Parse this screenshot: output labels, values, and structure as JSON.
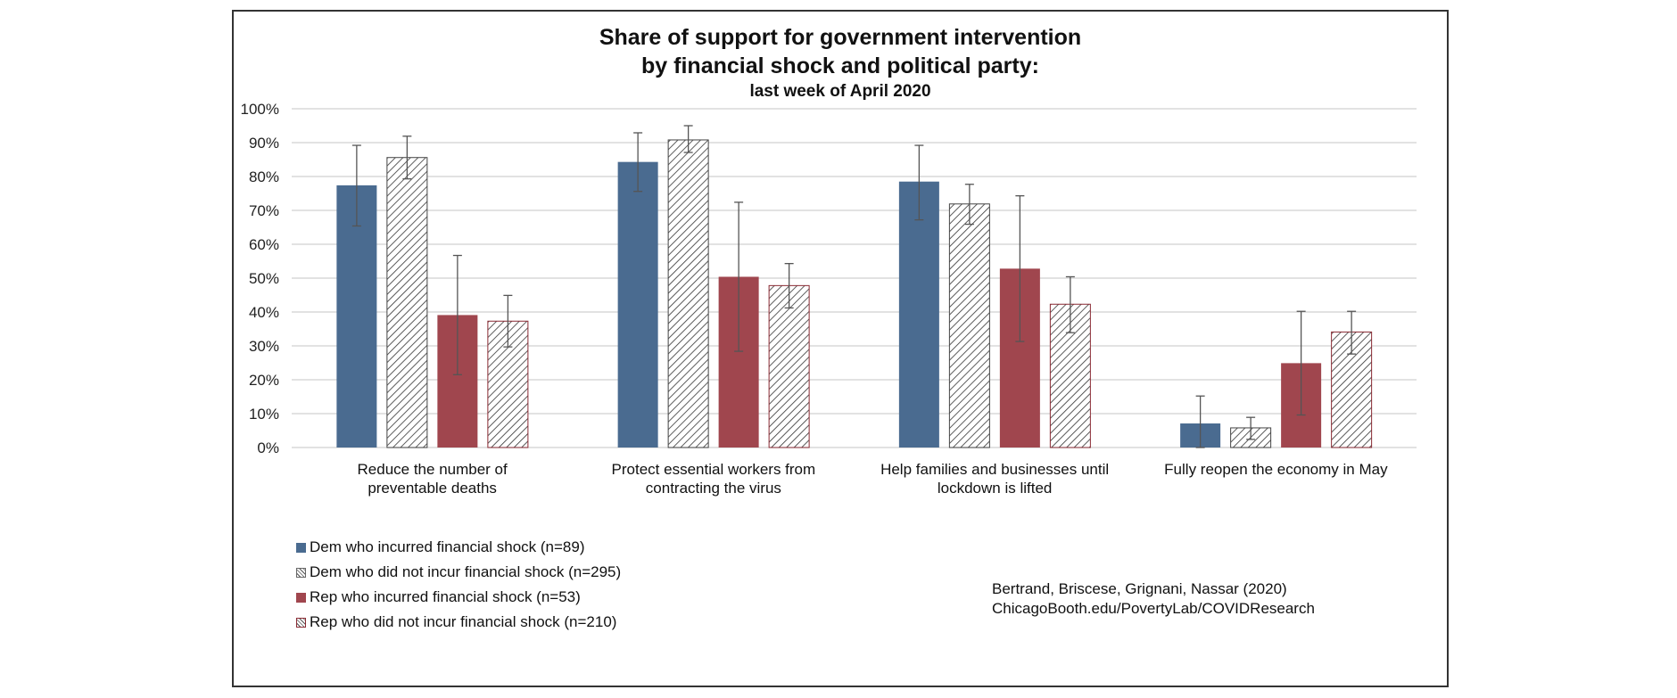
{
  "chart_data": {
    "type": "bar",
    "title": "Share of support for government intervention",
    "title_line2": "by financial shock and political party:",
    "subtitle": "last week of April 2020",
    "xlabel": "",
    "ylabel": "",
    "ylim": [
      0,
      100
    ],
    "yticks": [
      "0%",
      "10%",
      "20%",
      "30%",
      "40%",
      "50%",
      "60%",
      "70%",
      "80%",
      "90%",
      "100%"
    ],
    "grid": true,
    "legend_position": "bottom-left",
    "categories": [
      "Reduce the number of\npreventable deaths",
      "Protect essential workers from\ncontracting the virus",
      "Help families and businesses until\nlockdown is lifted",
      "Fully reopen the economy in May"
    ],
    "series": [
      {
        "name": "Dem who incurred financial shock (n=89)",
        "color": "#4a6b90",
        "pattern": "solid",
        "values": [
          77.4,
          84.3,
          78.5,
          7.1
        ],
        "error_high": [
          89.2,
          92.9,
          89.2,
          15.2
        ],
        "error_low": [
          65.4,
          75.6,
          67.2,
          0
        ]
      },
      {
        "name": "Dem who did not incur financial shock (n=295)",
        "color": "#3a3a3a",
        "pattern": "hatch",
        "values": [
          85.6,
          90.8,
          71.9,
          5.8
        ],
        "error_high": [
          91.9,
          95.0,
          77.7,
          8.9
        ],
        "error_low": [
          79.3,
          87.1,
          65.9,
          2.4
        ]
      },
      {
        "name": "Rep who incurred financial shock (n=53)",
        "color": "#a0464e",
        "pattern": "solid",
        "values": [
          39.1,
          50.4,
          52.8,
          24.9
        ],
        "error_high": [
          56.7,
          72.4,
          74.3,
          40.2
        ],
        "error_low": [
          21.5,
          28.4,
          31.3,
          9.6
        ]
      },
      {
        "name": "Rep who did not incur financial shock (n=210)",
        "color": "#8a2a33",
        "pattern": "hatch",
        "values": [
          37.3,
          47.8,
          42.3,
          34.1
        ],
        "error_high": [
          44.9,
          54.3,
          50.4,
          40.2
        ],
        "error_low": [
          29.7,
          41.2,
          33.9,
          27.6
        ]
      }
    ]
  },
  "credits": {
    "line1": "Bertrand, Briscese, Grignani, Nassar (2020)",
    "line2": "ChicagoBooth.edu/PovertyLab/COVIDResearch"
  }
}
